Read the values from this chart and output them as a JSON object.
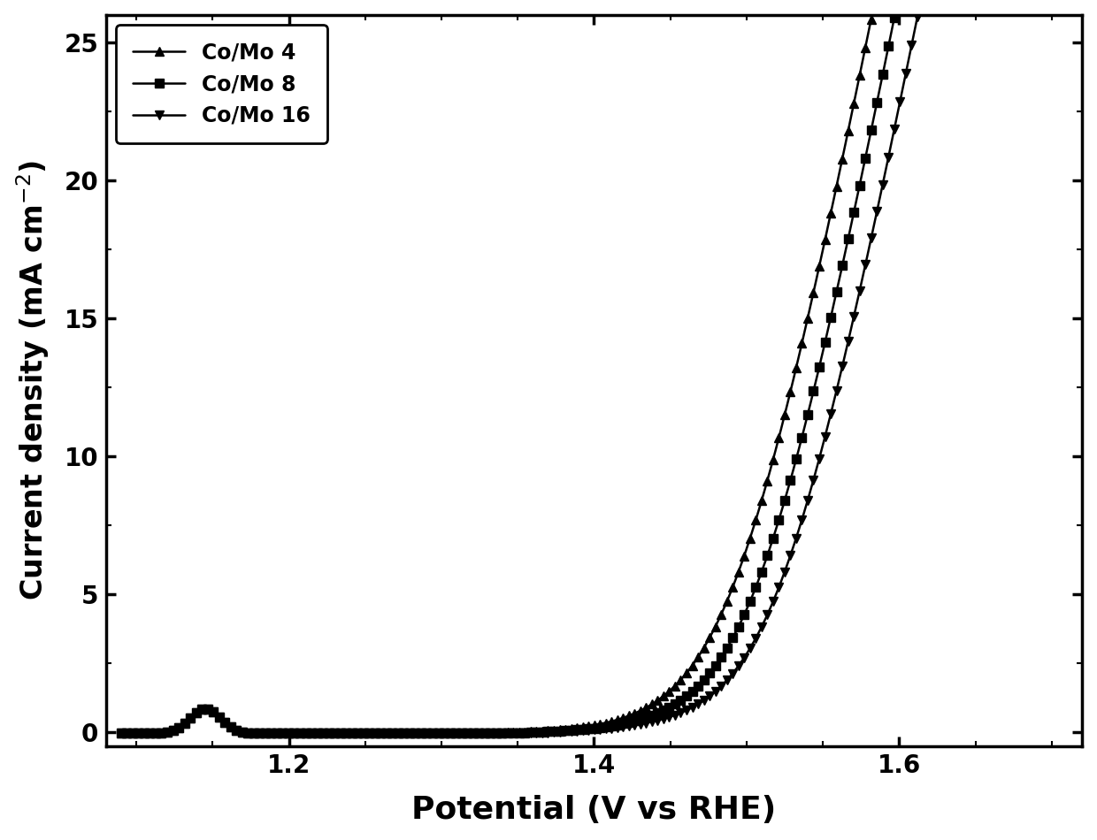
{
  "title": "",
  "xlabel": "Potential (V vs RHE)",
  "ylabel": "Current density (mA cm$^{-2}$)",
  "xlim": [
    1.08,
    1.72
  ],
  "ylim": [
    -0.5,
    26
  ],
  "yticks": [
    0,
    5,
    10,
    15,
    20,
    25
  ],
  "xticks": [
    1.2,
    1.4,
    1.6
  ],
  "series": [
    {
      "label": "Co/Mo 4",
      "marker": "^",
      "onset": 1.49,
      "color": "#000000"
    },
    {
      "label": "Co/Mo 8",
      "marker": "s",
      "onset": 1.505,
      "color": "#000000"
    },
    {
      "label": "Co/Mo 16",
      "marker": "v",
      "onset": 1.52,
      "color": "#000000"
    }
  ],
  "background_color": "#ffffff",
  "line_color": "#000000",
  "linewidth": 1.8,
  "markersize": 7,
  "legend_fontsize": 17,
  "axis_label_fontsize": 24,
  "tick_fontsize": 20,
  "xlabel_fontsize": 26
}
